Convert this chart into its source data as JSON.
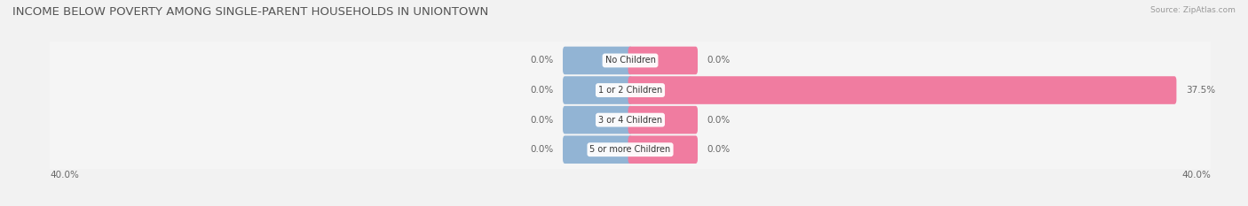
{
  "title": "INCOME BELOW POVERTY AMONG SINGLE-PARENT HOUSEHOLDS IN UNIONTOWN",
  "source": "Source: ZipAtlas.com",
  "categories": [
    "No Children",
    "1 or 2 Children",
    "3 or 4 Children",
    "5 or more Children"
  ],
  "single_father": [
    0.0,
    0.0,
    0.0,
    0.0
  ],
  "single_mother": [
    0.0,
    37.5,
    0.0,
    0.0
  ],
  "father_color": "#92B4D4",
  "mother_color": "#F07CA0",
  "axis_min": -40.0,
  "axis_max": 40.0,
  "background_color": "#f2f2f2",
  "row_bg_color": "#e8e8e8",
  "row_inner_color": "#f7f7f7",
  "title_fontsize": 9.5,
  "label_fontsize": 7.5,
  "annotation_fontsize": 7.5,
  "stub_size": 4.5
}
